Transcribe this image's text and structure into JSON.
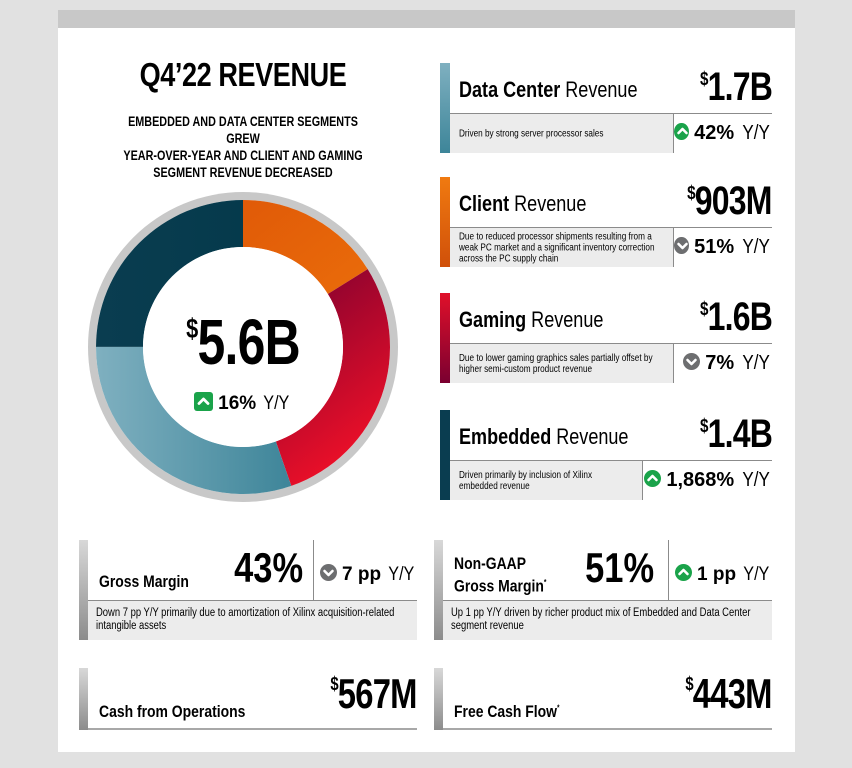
{
  "header": {
    "title": "Q4’22 REVENUE",
    "subtitle_lines": [
      "EMBEDDED AND DATA CENTER SEGMENTS GREW",
      "YEAR-OVER-YEAR AND CLIENT AND GAMING",
      "SEGMENT REVENUE DECREASED"
    ]
  },
  "total": {
    "currency": "$",
    "value": "5.6B",
    "change": "16%",
    "change_suffix": "Y/Y",
    "direction": "up"
  },
  "chart_data": {
    "type": "pie",
    "title": "Q4’22 REVENUE",
    "unit": "$B",
    "categories": [
      "Client",
      "Gaming",
      "Data Center",
      "Embedded"
    ],
    "values": [
      0.903,
      1.6,
      1.7,
      1.4
    ],
    "colors": [
      "#e8650a",
      "#c8102e",
      "#4a8ea3",
      "#0a3d50"
    ]
  },
  "segments": [
    {
      "name_bold": "Data Center",
      "name_light": "Revenue",
      "currency": "$",
      "amount": "1.7B",
      "description": "Driven by strong server processor sales",
      "change": "42%",
      "change_suffix": "Y/Y",
      "direction": "up",
      "accent_top": "#7fb0c0",
      "accent_bottom": "#3d8599"
    },
    {
      "name_bold": "Client",
      "name_light": "Revenue",
      "currency": "$",
      "amount": "903M",
      "description_lines": [
        "Due to reduced processor shipments resulting from a",
        "weak PC market and a significant inventory correction",
        "across the PC supply chain"
      ],
      "change": "51%",
      "change_suffix": "Y/Y",
      "direction": "down",
      "accent_top": "#f07a10",
      "accent_bottom": "#d0500a"
    },
    {
      "name_bold": "Gaming",
      "name_light": "Revenue",
      "currency": "$",
      "amount": "1.6B",
      "description_lines": [
        "Due to lower gaming graphics sales partially offset by",
        "higher semi-custom product revenue"
      ],
      "change": "7%",
      "change_suffix": "Y/Y",
      "direction": "down",
      "accent_top": "#e0102a",
      "accent_bottom": "#7a0030"
    },
    {
      "name_bold": "Embedded",
      "name_light": "Revenue",
      "currency": "$",
      "amount": "1.4B",
      "description_lines": [
        "Driven primarily by inclusion of Xilinx",
        "embedded revenue"
      ],
      "change": "1,868%",
      "change_suffix": "Y/Y",
      "direction": "up",
      "accent_top": "#0a3d50",
      "accent_bottom": "#0a3d50"
    }
  ],
  "margins": [
    {
      "name_lines": [
        "Gross Margin"
      ],
      "footnote": "",
      "value": "43%",
      "change": "7 pp",
      "change_suffix": "Y/Y",
      "direction": "down",
      "description_lines": [
        "Down 7 pp Y/Y primarily due to amortization of Xilinx acquisition-related",
        "intangible assets"
      ]
    },
    {
      "name_lines": [
        "Non-GAAP",
        "Gross Margin"
      ],
      "footnote": "*",
      "value": "51%",
      "change": "1 pp",
      "change_suffix": "Y/Y",
      "direction": "up",
      "description_lines": [
        "Up 1 pp Y/Y driven by richer product mix of Embedded and Data Center",
        "segment revenue"
      ]
    }
  ],
  "cash": [
    {
      "name": "Cash from Operations",
      "footnote": "",
      "currency": "$",
      "amount": "567M"
    },
    {
      "name": "Free Cash Flow",
      "footnote": "*",
      "currency": "$",
      "amount": "443M"
    }
  ],
  "colors": {
    "up": "#1aa34a",
    "down": "#6d6e70",
    "ring": "#c8c8c8",
    "page_bg": "#e1e1e1"
  }
}
